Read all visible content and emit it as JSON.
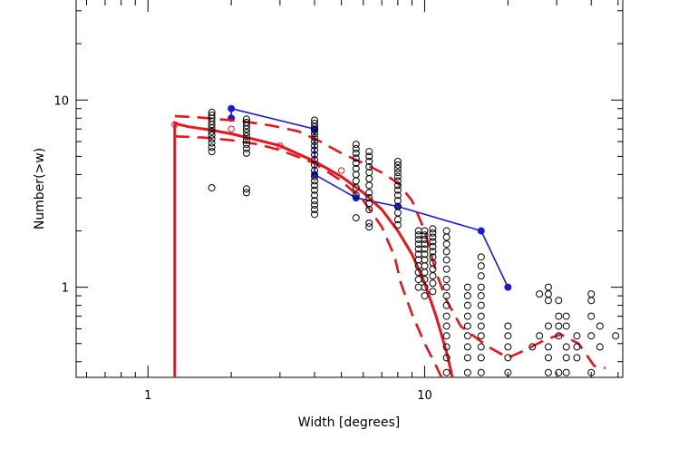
{
  "chart_data": {
    "type": "scatter",
    "xlabel": "Width [degrees]",
    "ylabel": "Number(>w)",
    "xscale": "log",
    "yscale": "log",
    "xlim": [
      0.55,
      52
    ],
    "ylim": [
      0.33,
      35
    ],
    "x_tick_labels": [
      {
        "value": 1,
        "label": "1"
      },
      {
        "value": 10,
        "label": "10"
      }
    ],
    "y_tick_labels": [
      {
        "value": 1,
        "label": "1"
      },
      {
        "value": 10,
        "label": "10"
      }
    ],
    "colors": {
      "axis": "#000000",
      "red": "#e8141e",
      "blue": "#1a1adb",
      "open_circle": "#000000"
    },
    "open_circles": [
      {
        "x": 1.7,
        "y": [
          8.6,
          8.3,
          8.0,
          7.7,
          7.4,
          7.1,
          6.8,
          6.5,
          6.2,
          5.9,
          5.6,
          5.3,
          3.4
        ]
      },
      {
        "x": 2.27,
        "y": [
          7.9,
          7.6,
          7.3,
          7.0,
          6.7,
          6.4,
          6.1,
          5.8,
          5.5,
          5.2,
          3.35,
          3.2
        ]
      },
      {
        "x": 4.0,
        "y": [
          7.8,
          7.5,
          7.2,
          6.9,
          6.6,
          6.3,
          6.0,
          5.7,
          5.4,
          5.1,
          4.8,
          4.5,
          4.2,
          3.9,
          3.7,
          3.5,
          3.3,
          3.1,
          2.9,
          2.75,
          2.6,
          2.45
        ]
      },
      {
        "x": 5.65,
        "y": [
          5.8,
          5.5,
          5.2,
          4.9,
          4.6,
          4.3,
          4.0,
          3.7,
          3.4,
          3.1,
          2.35
        ]
      },
      {
        "x": 6.3,
        "y": [
          5.3,
          5.0,
          4.7,
          4.4,
          4.1,
          3.8,
          3.5,
          3.2,
          3.0,
          2.8,
          2.6,
          2.2,
          2.1
        ]
      },
      {
        "x": 8.0,
        "y": [
          4.7,
          4.5,
          4.3,
          4.1,
          3.9,
          3.7,
          3.5,
          3.3,
          3.1,
          2.9,
          2.7,
          2.5,
          2.3,
          2.15
        ]
      },
      {
        "x": 9.5,
        "y": [
          2.0,
          1.9,
          1.8,
          1.7,
          1.6,
          1.5,
          1.4,
          1.3,
          1.2,
          1.1,
          1.0
        ]
      },
      {
        "x": 10.0,
        "y": [
          2.0,
          1.9,
          1.8,
          1.7,
          1.6,
          1.5,
          1.4,
          1.3,
          1.2,
          1.1,
          1.0,
          0.9
        ]
      },
      {
        "x": 10.7,
        "y": [
          2.05,
          1.95,
          1.85,
          1.75,
          1.65,
          1.55,
          1.45,
          1.35,
          1.25,
          1.15,
          1.05,
          0.95
        ]
      },
      {
        "x": 12.0,
        "y": [
          2.0,
          1.85,
          1.7,
          1.55,
          1.4,
          1.25,
          1.1,
          1.0,
          0.9,
          0.8,
          0.7,
          0.62,
          0.55,
          0.48,
          0.42,
          0.35
        ]
      },
      {
        "x": 14.3,
        "y": [
          1.0,
          0.9,
          0.8,
          0.7,
          0.62,
          0.55,
          0.48,
          0.42,
          0.35
        ]
      },
      {
        "x": 16.0,
        "y": [
          1.45,
          1.3,
          1.15,
          1.0,
          0.9,
          0.8,
          0.7,
          0.62,
          0.55,
          0.48,
          0.42,
          0.35
        ]
      },
      {
        "x": 20.0,
        "y": [
          0.62,
          0.55,
          0.48,
          0.42,
          0.35
        ]
      },
      {
        "x": 24.5,
        "y": [
          0.48
        ]
      },
      {
        "x": 26.0,
        "y": [
          0.92,
          0.55
        ]
      },
      {
        "x": 28.0,
        "y": [
          1.0,
          0.92,
          0.85,
          0.62,
          0.48,
          0.42,
          0.35
        ]
      },
      {
        "x": 30.5,
        "y": [
          0.85,
          0.7,
          0.62,
          0.55,
          0.35
        ]
      },
      {
        "x": 32.5,
        "y": [
          0.7,
          0.62,
          0.48,
          0.42,
          0.35
        ]
      },
      {
        "x": 35.5,
        "y": [
          0.55,
          0.48,
          0.42
        ]
      },
      {
        "x": 40.0,
        "y": [
          0.92,
          0.85,
          0.7,
          0.55,
          0.35
        ]
      },
      {
        "x": 43.0,
        "y": [
          0.62,
          0.48
        ]
      },
      {
        "x": 49.0,
        "y": [
          0.55
        ]
      }
    ],
    "series": [
      {
        "color": "#1a1adb",
        "style": "solid-line-with-filled-circles",
        "x": [
          2.0,
          2.0,
          4.0,
          4.0,
          5.65,
          8.0,
          16.0,
          20.0
        ],
        "y": [
          8.0,
          9.0,
          7.0,
          4.0,
          3.0,
          2.7,
          2.0,
          1.0
        ]
      },
      {
        "color": "#e8141e",
        "style": "solid",
        "x": [
          1.25,
          1.25,
          1.4,
          1.7,
          2.0,
          2.5,
          3.0,
          4.0,
          5.0,
          6.0,
          7.0,
          8.0,
          9.0,
          10.0,
          11.0,
          12.0,
          12.6
        ],
        "y": [
          0.33,
          7.5,
          7.2,
          6.9,
          6.6,
          6.1,
          5.7,
          4.7,
          3.9,
          3.2,
          2.6,
          2.0,
          1.5,
          1.05,
          0.7,
          0.45,
          0.33
        ]
      },
      {
        "color": "#e8141e",
        "style": "dashed",
        "x": [
          1.25,
          1.5,
          1.8,
          2.2,
          2.8,
          3.5,
          4.2,
          5.0,
          6.0,
          7.0,
          8.0,
          9.0,
          10.0,
          11.0,
          12.0,
          13.5,
          15.0,
          17.0,
          20.0,
          23.0,
          27.0,
          31.0,
          36.0,
          41.0,
          45.0
        ],
        "y": [
          8.2,
          8.1,
          7.9,
          7.7,
          7.3,
          6.8,
          6.0,
          5.2,
          4.6,
          4.1,
          3.6,
          2.9,
          2.0,
          1.2,
          0.85,
          0.62,
          0.55,
          0.48,
          0.42,
          0.46,
          0.52,
          0.56,
          0.5,
          0.38,
          0.37
        ]
      },
      {
        "color": "#e8141e",
        "style": "dashed",
        "x": [
          1.25,
          1.6,
          2.0,
          2.5,
          3.0,
          4.0,
          5.0,
          6.0,
          7.0,
          7.8,
          8.2,
          9.0,
          10.0,
          11.0,
          11.5
        ],
        "y": [
          6.4,
          6.3,
          6.1,
          5.8,
          5.4,
          4.6,
          3.7,
          2.9,
          2.1,
          1.45,
          1.05,
          0.72,
          0.5,
          0.38,
          0.33
        ]
      },
      {
        "color": "#e8141e",
        "style": "open-circles",
        "x": [
          1.25,
          2.0,
          3.0,
          5.0
        ],
        "y": [
          7.4,
          7.0,
          5.7,
          4.2
        ]
      }
    ],
    "grid": false,
    "legend": "none"
  }
}
